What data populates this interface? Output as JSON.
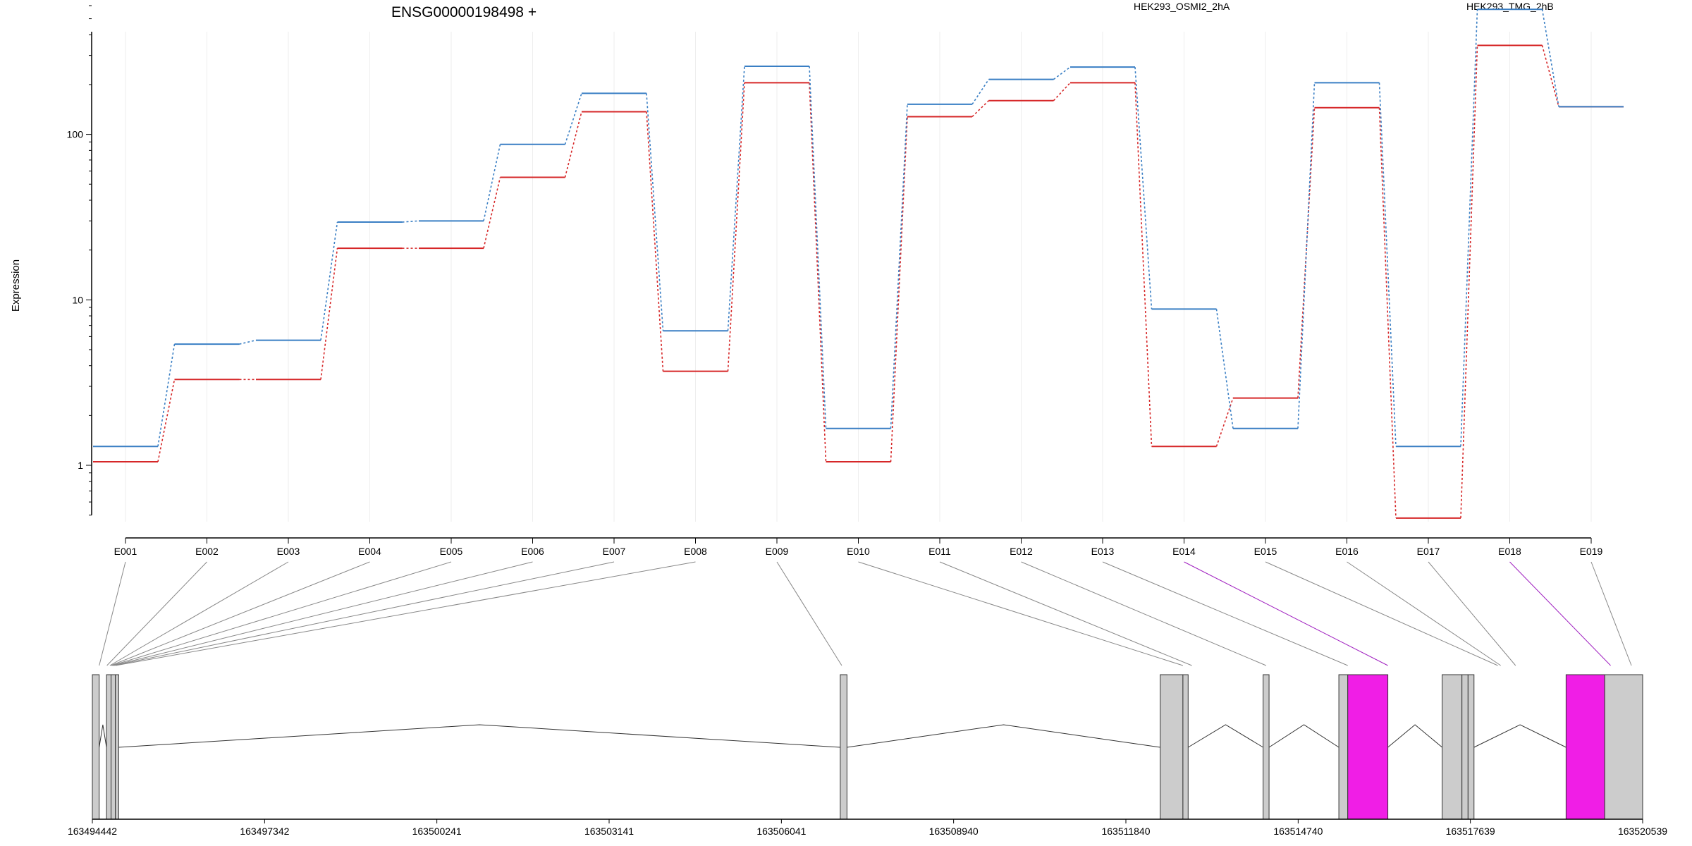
{
  "chart_data": {
    "type": "line",
    "title": "ENSG00000198498 +",
    "ylabel": "Expression",
    "yscale": "log",
    "ylim": [
      0.5,
      800
    ],
    "yticks": [
      1,
      10,
      100
    ],
    "ytick_labels": [
      "1",
      "10",
      "100"
    ],
    "categories": [
      "E001",
      "E002",
      "E003",
      "E004",
      "E005",
      "E006",
      "E007",
      "E008",
      "E009",
      "E010",
      "E011",
      "E012",
      "E013",
      "E014",
      "E015",
      "E016",
      "E017",
      "E018",
      "E019"
    ],
    "series": [
      {
        "name": "HEK293_OSMI2_2hA",
        "color": "#d62728",
        "values": [
          1.05,
          3.3,
          3.3,
          20.5,
          20.5,
          55,
          137,
          3.7,
          205,
          1.05,
          128,
          160,
          205,
          1.3,
          2.55,
          145,
          0.48,
          345,
          147
        ]
      },
      {
        "name": "HEK293_TMG_2hB",
        "color": "#3a7fc4",
        "values": [
          1.3,
          5.4,
          5.7,
          29.5,
          30,
          87,
          177,
          6.5,
          258,
          1.67,
          152,
          215,
          255,
          8.8,
          1.67,
          205,
          1.3,
          570,
          147
        ]
      }
    ],
    "gene_track": {
      "coordinate_ticks": [
        "163494442",
        "163497342",
        "163500241",
        "163503141",
        "163506041",
        "163508940",
        "163511840",
        "163514740",
        "163517639",
        "163520539"
      ],
      "coord_range": [
        163494442,
        163520539
      ],
      "exon_positions": [
        163494557,
        163494687,
        163494737,
        163494754,
        163494771,
        163494788,
        163494804,
        163494832,
        163507057,
        163512800,
        163512950,
        163514200,
        163515575,
        163516250,
        163518100,
        163518150,
        163518400,
        163520000,
        163520350
      ],
      "highlighted_exons": [
        "E014",
        "E018"
      ],
      "highlight_color": "#f01ee6",
      "boxes": [
        {
          "start": 163494442,
          "end": 163494557,
          "fill": "#cccccc"
        },
        {
          "start": 163494680,
          "end": 163494757,
          "fill": "#cccccc"
        },
        {
          "start": 163494757,
          "end": 163494830,
          "fill": "#cccccc"
        },
        {
          "start": 163494830,
          "end": 163494885,
          "fill": "#cccccc"
        },
        {
          "start": 163507032,
          "end": 163507145,
          "fill": "#cccccc"
        },
        {
          "start": 163512418,
          "end": 163512800,
          "fill": "#cccccc"
        },
        {
          "start": 163512800,
          "end": 163512888,
          "fill": "#cccccc"
        },
        {
          "start": 163514150,
          "end": 163514250,
          "fill": "#cccccc"
        },
        {
          "start": 163515425,
          "end": 163515575,
          "fill": "#cccccc"
        },
        {
          "start": 163515575,
          "end": 163516250,
          "fill": "#f01ee6"
        },
        {
          "start": 163517164,
          "end": 163517497,
          "fill": "#cccccc"
        },
        {
          "start": 163517497,
          "end": 163517600,
          "fill": "#cccccc"
        },
        {
          "start": 163517600,
          "end": 163517700,
          "fill": "#cccccc"
        },
        {
          "start": 163519250,
          "end": 163519900,
          "fill": "#f01ee6"
        },
        {
          "start": 163519900,
          "end": 163520539,
          "fill": "#cccccc"
        }
      ]
    }
  }
}
